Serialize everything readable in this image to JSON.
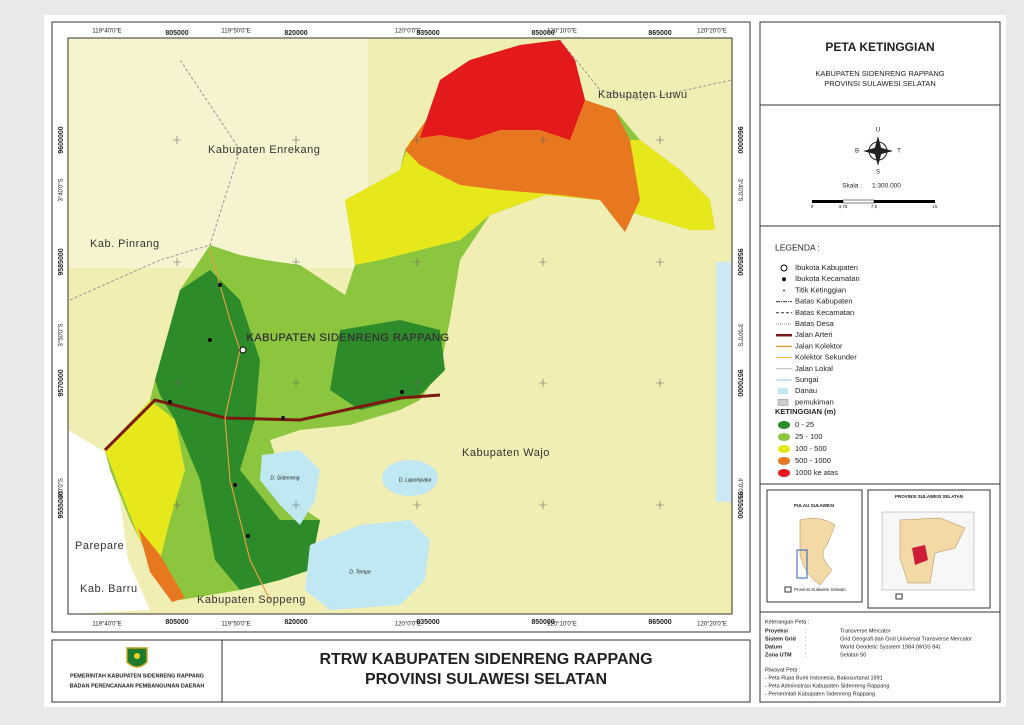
{
  "header": {
    "title": "PETA KETINGGIAN",
    "subtitle": [
      "KABUPATEN SIDENRENG RAPPANG",
      "PROVINSI SULAWESI SELATAN"
    ]
  },
  "map": {
    "x_grid": [
      "119°40'0\"E",
      "805000",
      "119°50'0\"E",
      "820000",
      "120°0'0\"E",
      "835000",
      "850000",
      "120°10'0\"E",
      "865000",
      "120°20'0\"E"
    ],
    "y_grid": [
      "9600000",
      "3°40'0\"S",
      "9585000",
      "3°50'0\"S",
      "9570000",
      "4°0'0\"S",
      "9555000"
    ],
    "place_names": [
      "Kabupaten Luwu",
      "Kabupaten Enrekang",
      "Kab. Pinrang",
      "KABUPATEN SIDENRENG RAPPANG",
      "Kabupaten Wajo",
      "Parepare",
      "Kab. Barru",
      "Kabupaten Soppeng"
    ],
    "lakes": [
      "D. Sidenreng",
      "D. Lapompaka",
      "D. Tempe"
    ]
  },
  "compass": {
    "north": "U",
    "west": "B",
    "east": "T",
    "south": "S"
  },
  "scale": {
    "label": "Skala :",
    "ratio": "1:300.000",
    "ticks": [
      "0",
      "3,75",
      "7,5",
      "15"
    ]
  },
  "legend": {
    "title": "LEGENDA :",
    "items": [
      "Ibukota Kabupaten",
      "Ibukota Kecamatan",
      "Titik Ketinggian",
      "Batas Kabupaten",
      "Batas Kecamatan",
      "Batas Desa",
      "Jalan Arteri",
      "Jalan Kolektor",
      "Kolektor Sekunder",
      "Jalan Lokal",
      "Sungai",
      "Danau",
      "pemukiman"
    ],
    "elevation_title": "KETINGGIAN (m)",
    "elevation_classes": [
      {
        "label": "0 - 25",
        "color": "#2e8b2a"
      },
      {
        "label": "25 - 100",
        "color": "#8cc63e"
      },
      {
        "label": "100 - 500",
        "color": "#e6e81c"
      },
      {
        "label": "500 - 1000",
        "color": "#e8781f"
      },
      {
        "label": "1000 ke atas",
        "color": "#e3191b"
      }
    ]
  },
  "insets": {
    "left_title": "PULAU SULAWESI",
    "right_title": "PROVINSI SULAWESI SELATAN",
    "note": "Provinsi Sulawesi Selatan"
  },
  "notes": {
    "title": "Keterangan Peta :",
    "separator": ":",
    "rows": [
      [
        "Proyeksi",
        "Transverse Mercator"
      ],
      [
        "Sistem Grid",
        "Grid Geografi dan Grid Universal Transverse Mercator"
      ],
      [
        "Datum",
        "World Geodetic Sysstem 1984 (WGS 84)"
      ],
      [
        "Zona UTM",
        "Selatan 50"
      ]
    ],
    "history_title": "Riwayat Peta :",
    "history": [
      "- Peta Rupa Bumi Indonesia, Bakosurtanal 1991",
      "- Peta Administrasi Kabupaten  Sidenreng Rappang",
      "- Pemerintah Kabupaten Sidenreng Rappang"
    ]
  },
  "footer": {
    "agency": [
      "PEMERINTAH KABUPATEN SIDENRENG RAPPANG",
      "BADAN PERENCANAAN PEMBANGUNAN DAERAH"
    ],
    "title": [
      "RTRW KABUPATEN SIDENRENG RAPPANG",
      "PROVINSI SULAWESI SELATAN"
    ]
  }
}
